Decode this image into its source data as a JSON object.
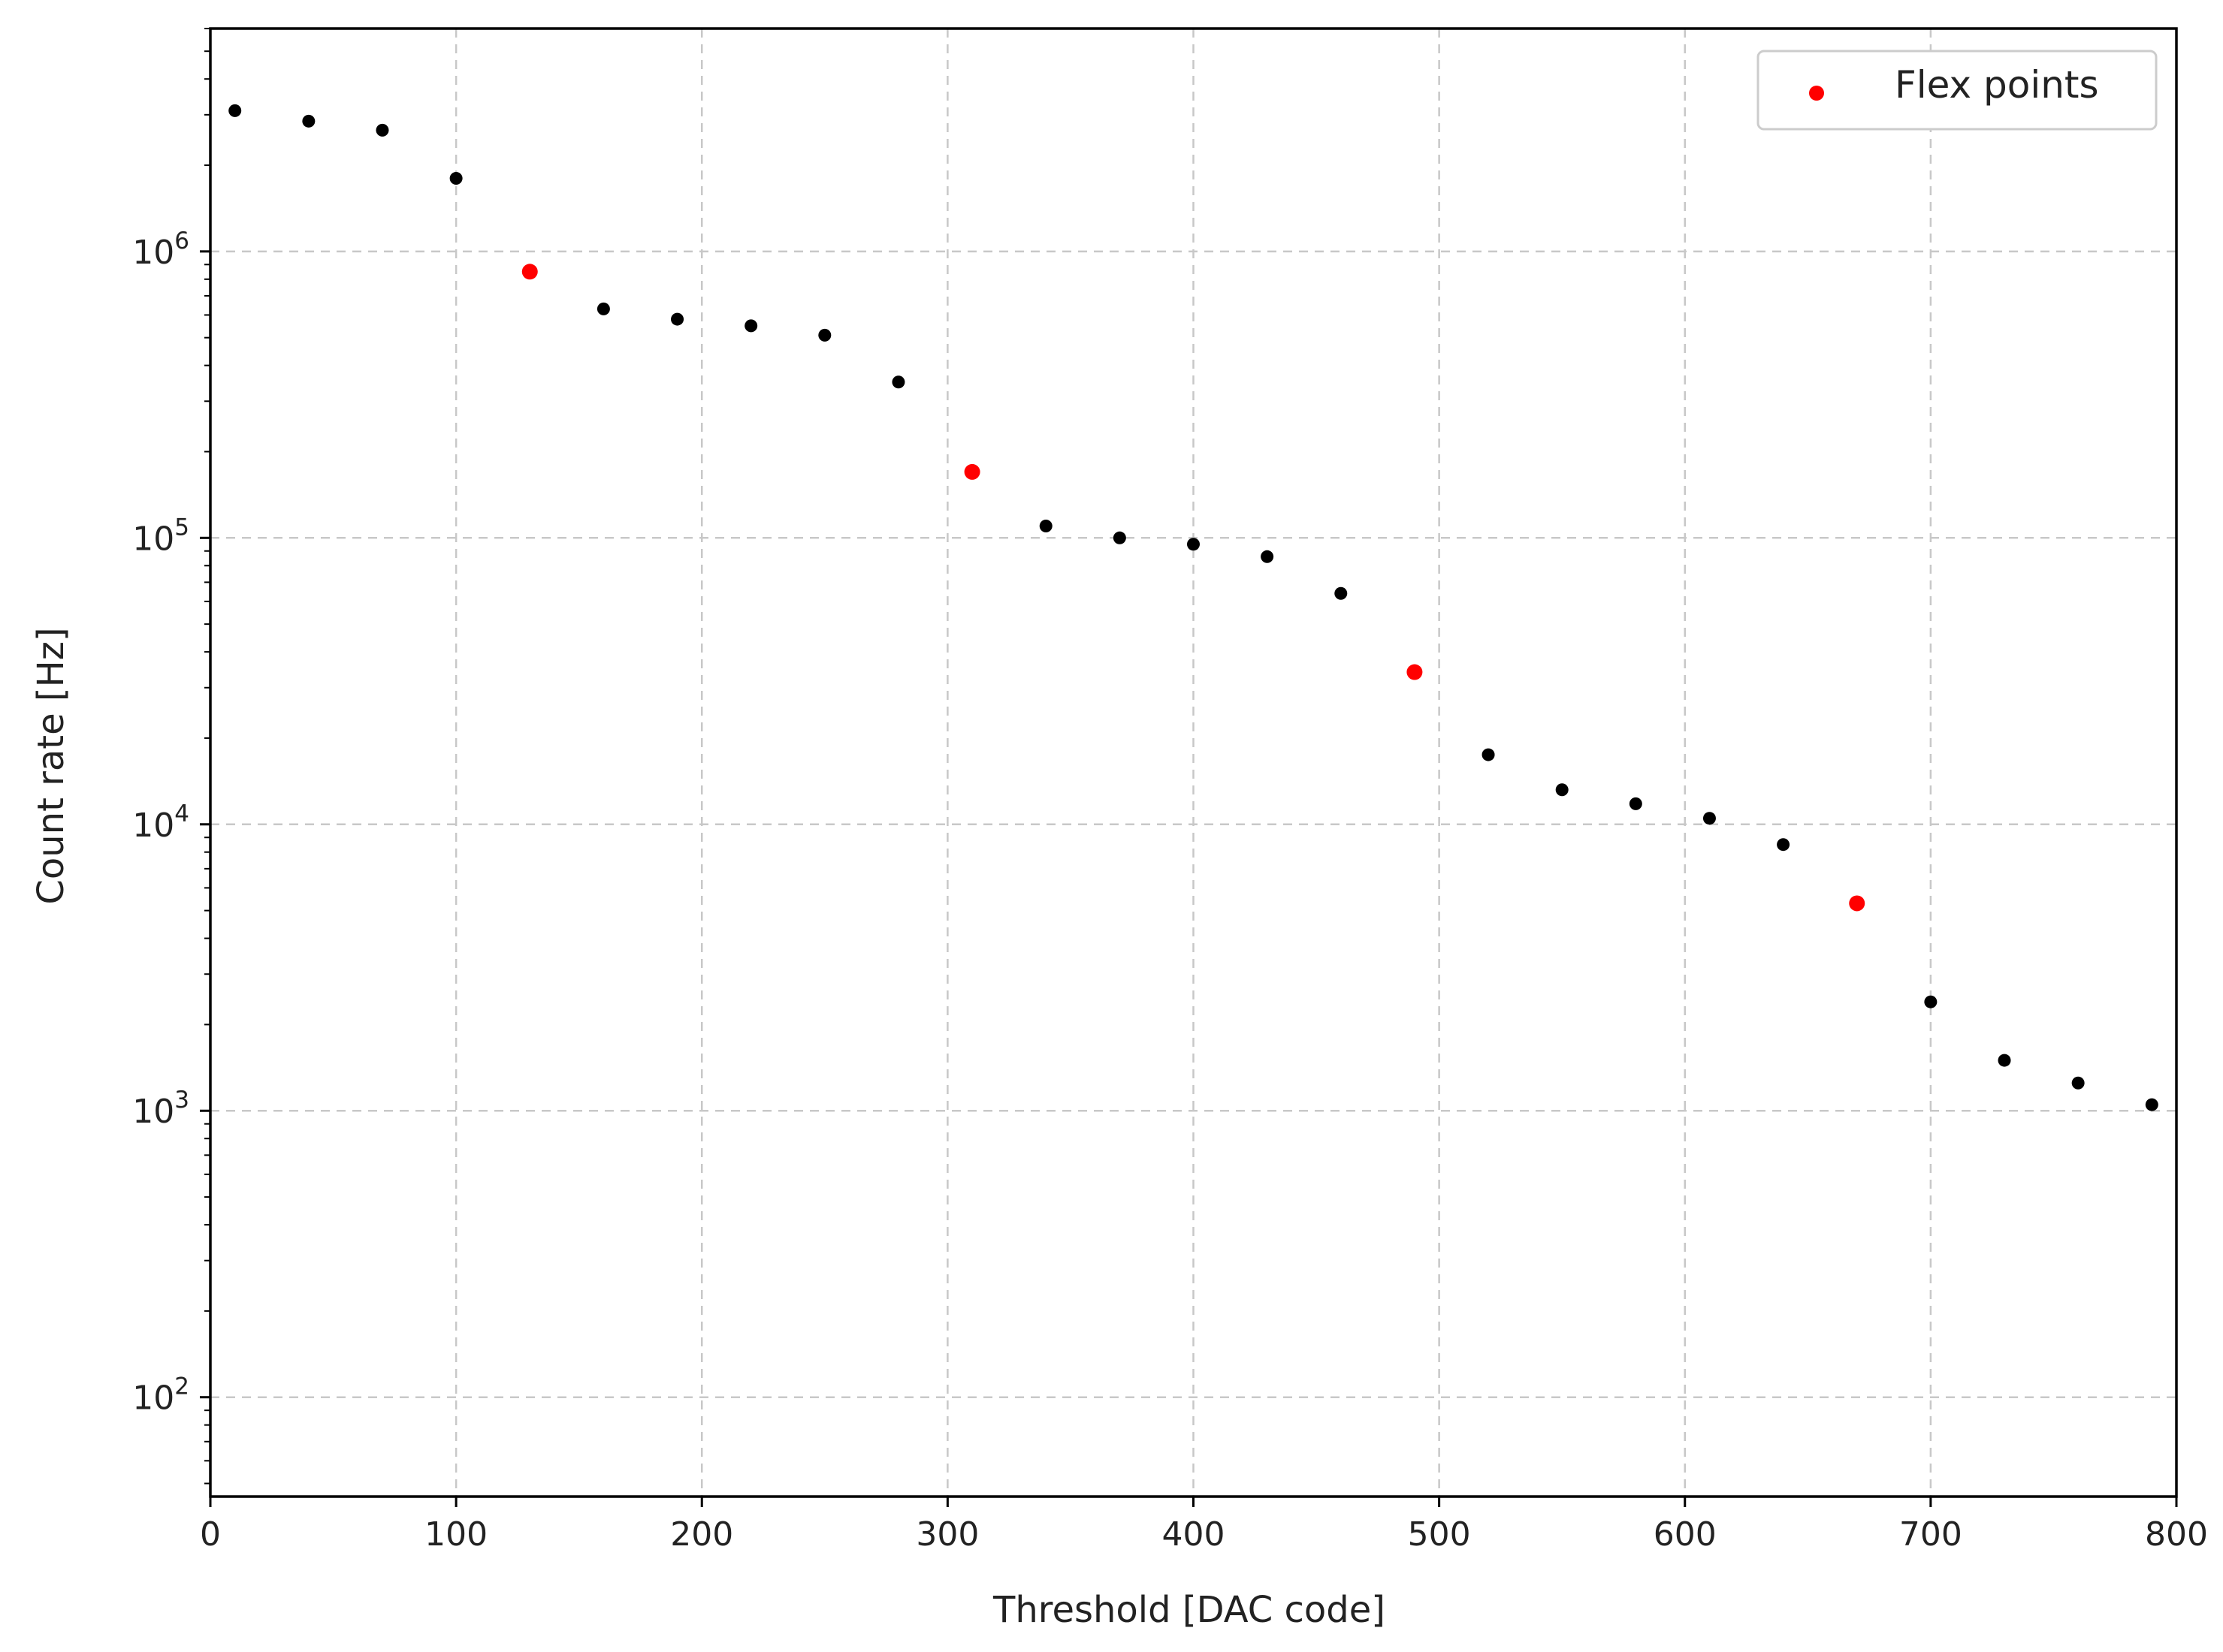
{
  "chart_data": {
    "type": "scatter",
    "xlabel": "Threshold [DAC code]",
    "ylabel": "Count rate [Hz]",
    "xlim": [
      0,
      800
    ],
    "ylim": [
      45,
      6000000
    ],
    "y_scale": "log",
    "grid": true,
    "x_ticks": [
      0,
      100,
      200,
      300,
      400,
      500,
      600,
      700,
      800
    ],
    "x_tick_labels": [
      "0",
      "100",
      "200",
      "300",
      "400",
      "500",
      "600",
      "700",
      "800"
    ],
    "y_ticks": [
      100,
      1000,
      10000,
      100000,
      1000000
    ],
    "y_tick_labels": [
      {
        "base": "10",
        "exp": "2"
      },
      {
        "base": "10",
        "exp": "3"
      },
      {
        "base": "10",
        "exp": "4"
      },
      {
        "base": "10",
        "exp": "5"
      },
      {
        "base": "10",
        "exp": "6"
      }
    ],
    "legend_position": "top-right",
    "series": [
      {
        "color": "#000000",
        "x": [
          10,
          40,
          70,
          100,
          160,
          190,
          220,
          250,
          280,
          340,
          370,
          400,
          430,
          460,
          520,
          550,
          580,
          610,
          640,
          700,
          730,
          760,
          790
        ],
        "y": [
          3100000,
          2850000,
          2650000,
          1800000,
          630000,
          580000,
          550000,
          510000,
          350000,
          110000,
          100000,
          95000,
          86000,
          64000,
          17500,
          13200,
          11800,
          10500,
          8500,
          2400,
          1500,
          1250,
          1050
        ]
      },
      {
        "name": "Flex points",
        "color": "#ff0000",
        "x": [
          130,
          310,
          490,
          670
        ],
        "y": [
          850000,
          170000,
          34000,
          5300
        ]
      }
    ]
  }
}
